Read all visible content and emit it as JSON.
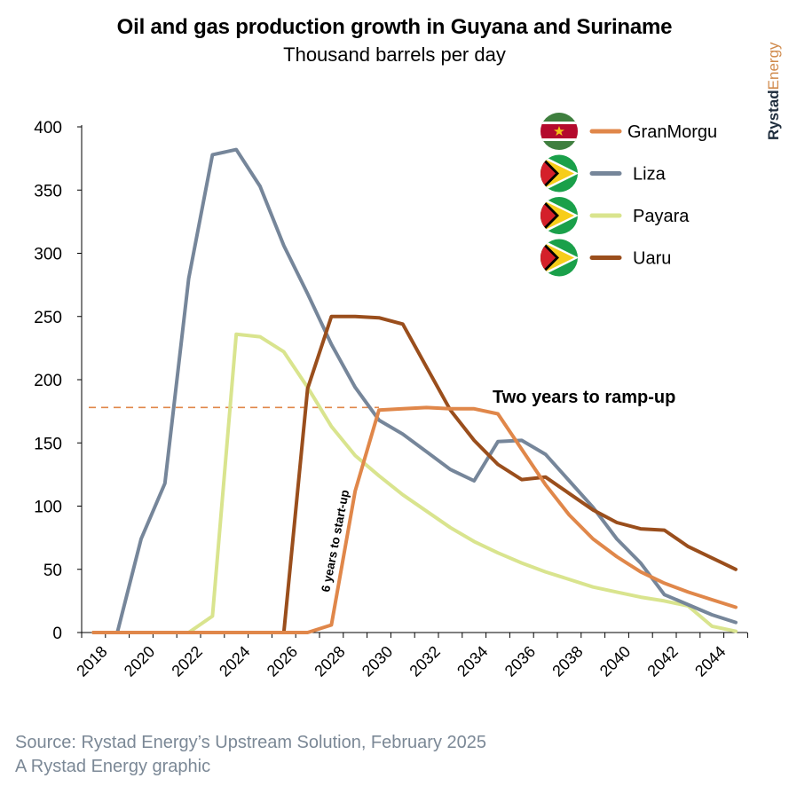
{
  "chart_data": {
    "type": "line",
    "title": "Oil and gas production growth in Guyana and Suriname",
    "subtitle": "Thousand barrels per day",
    "xlabel": "",
    "ylabel": "",
    "xlim": [
      2018,
      2045
    ],
    "ylim": [
      0,
      400
    ],
    "y_ticks": [
      0,
      50,
      100,
      150,
      200,
      250,
      300,
      350,
      400
    ],
    "x_ticks": [
      "2018",
      "2020",
      "2022",
      "2024",
      "2026",
      "2028",
      "2030",
      "2032",
      "2034",
      "2036",
      "2038",
      "2040",
      "2042",
      "2044"
    ],
    "grid": false,
    "legend_position": "top-right",
    "x": [
      2018,
      2019,
      2020,
      2021,
      2022,
      2023,
      2024,
      2025,
      2026,
      2027,
      2028,
      2029,
      2030,
      2031,
      2032,
      2033,
      2034,
      2035,
      2036,
      2037,
      2038,
      2039,
      2040,
      2041,
      2042,
      2043,
      2044,
      2045
    ],
    "series": [
      {
        "name": "GranMorgu",
        "color": "#E0874A",
        "flag": "suriname-flag",
        "values": [
          0,
          0,
          0,
          0,
          0,
          0,
          0,
          0,
          0,
          0,
          6,
          112,
          176,
          177,
          178,
          177,
          177,
          173,
          145,
          117,
          93,
          74,
          60,
          48,
          39,
          32,
          26,
          20
        ]
      },
      {
        "name": "Liza",
        "color": "#76869A",
        "flag": "guyana-flag",
        "values": [
          0,
          0,
          74,
          118,
          280,
          378,
          382,
          353,
          306,
          268,
          228,
          194,
          168,
          157,
          143,
          129,
          120,
          151,
          152,
          141,
          120,
          99,
          74,
          55,
          30,
          22,
          14,
          8
        ]
      },
      {
        "name": "Payara",
        "color": "#D9E48E",
        "flag": "guyana-flag",
        "values": [
          0,
          0,
          0,
          0,
          0,
          13,
          236,
          234,
          222,
          194,
          163,
          140,
          124,
          109,
          96,
          83,
          72,
          63,
          55,
          48,
          42,
          36,
          32,
          28,
          25,
          21,
          5,
          1
        ]
      },
      {
        "name": "Uaru",
        "color": "#9A4E1C",
        "flag": "guyana-flag",
        "values": [
          0,
          0,
          0,
          0,
          0,
          0,
          0,
          0,
          0,
          193,
          250,
          250,
          249,
          244,
          210,
          176,
          152,
          133,
          121,
          123,
          110,
          97,
          87,
          82,
          81,
          68,
          59,
          50
        ]
      }
    ],
    "reference_line": {
      "value": 178,
      "color": "#E0874A",
      "style": "dashed",
      "from_year": 2018,
      "to_year": 2030
    },
    "annotations": [
      {
        "text": "Two years to ramp-up"
      },
      {
        "text": "6 years to start-up"
      }
    ]
  },
  "logo": {
    "part1": "Rystad",
    "part2": "Energy"
  },
  "footer": {
    "source": "Source: Rystad Energy’s Upstream Solution, February 2025",
    "credit": "A Rystad Energy graphic"
  }
}
